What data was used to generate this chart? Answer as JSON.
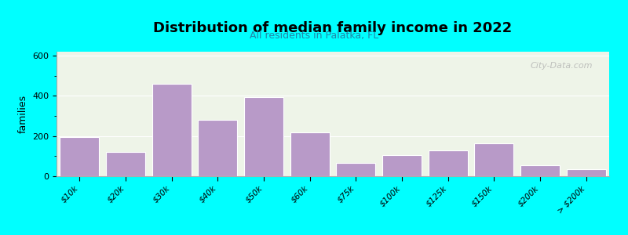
{
  "title": "Distribution of median family income in 2022",
  "subtitle": "All residents in Palatka, FL",
  "ylabel": "families",
  "background_outer": "#00FFFF",
  "background_inner_top": "#f5f5e8",
  "background_inner_bottom": "#e8f0e0",
  "bar_color": "#b89ac8",
  "bar_edge_color": "#ffffff",
  "categories": [
    "$10k",
    "$20k",
    "$30k",
    "$40k",
    "$50k",
    "$60k",
    "$75k",
    "$100k",
    "$125k",
    "$150k",
    "$200k",
    "> $200k"
  ],
  "values": [
    195,
    120,
    460,
    280,
    395,
    220,
    65,
    105,
    130,
    165,
    55,
    35
  ],
  "ylim": [
    0,
    620
  ],
  "yticks": [
    0,
    200,
    400,
    600
  ],
  "watermark": "City-Data.com"
}
